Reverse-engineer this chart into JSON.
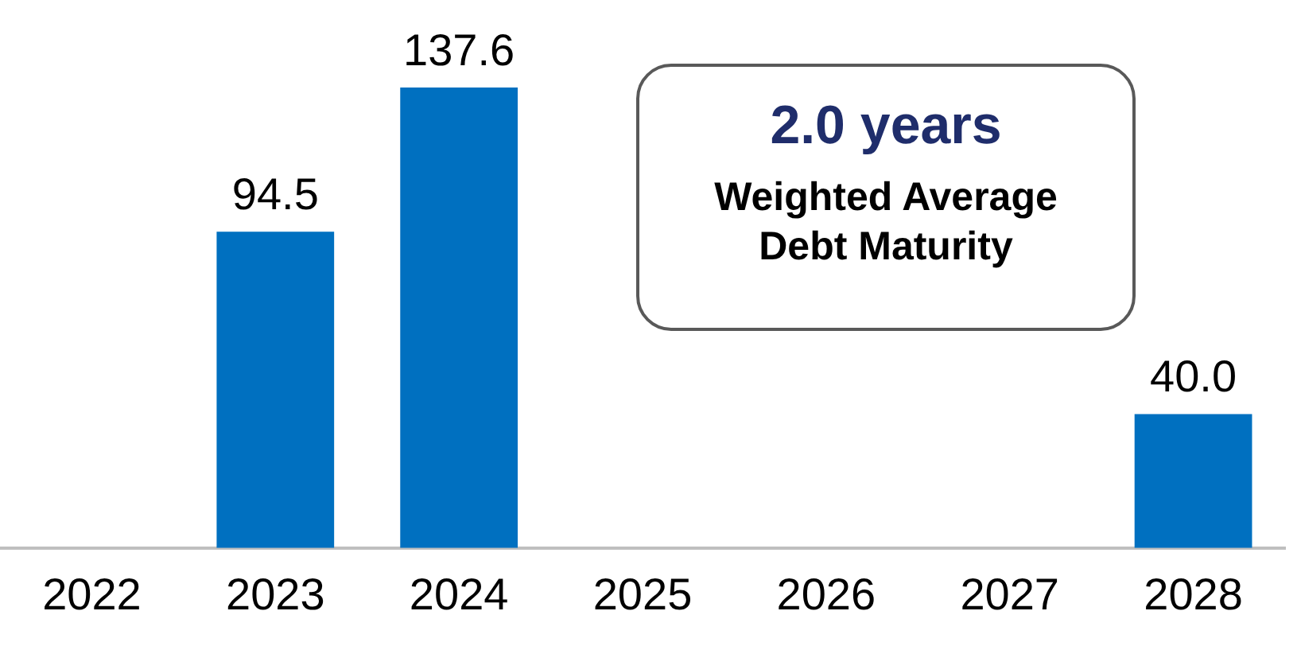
{
  "chart_data": {
    "type": "bar",
    "categories": [
      "2022",
      "2023",
      "2024",
      "2025",
      "2026",
      "2027",
      "2028"
    ],
    "values": [
      null,
      94.5,
      137.6,
      null,
      null,
      null,
      40.0
    ],
    "color": "#0070c0",
    "value_labels": [
      null,
      "94.5",
      "137.6",
      null,
      null,
      null,
      "40.0"
    ],
    "grid": false,
    "legend": false,
    "tick_labels": "x",
    "annotations": [
      "2.0 years",
      "Weighted Average Debt Maturity"
    ]
  }
}
